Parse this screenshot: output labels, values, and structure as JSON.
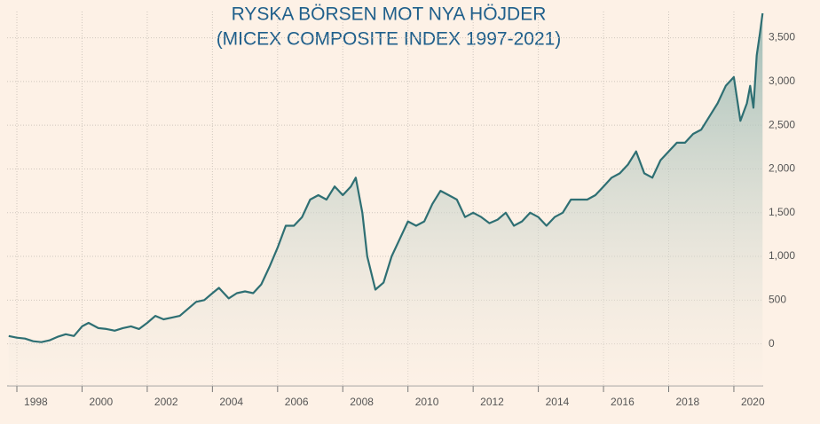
{
  "chart_data": {
    "type": "line",
    "title": "RYSKA BÖRSEN MOT NYA HÖJDER",
    "subtitle": "(MICEX COMPOSITE INDEX 1997-2021)",
    "x": [
      1997.75,
      1998.0,
      1998.25,
      1998.5,
      1998.75,
      1999.0,
      1999.25,
      1999.5,
      1999.75,
      2000.0,
      2000.2,
      2000.5,
      2000.75,
      2001.0,
      2001.25,
      2001.5,
      2001.75,
      2002.0,
      2002.25,
      2002.5,
      2002.75,
      2003.0,
      2003.25,
      2003.5,
      2003.75,
      2004.0,
      2004.2,
      2004.5,
      2004.75,
      2005.0,
      2005.25,
      2005.5,
      2005.75,
      2006.0,
      2006.25,
      2006.5,
      2006.75,
      2007.0,
      2007.25,
      2007.5,
      2007.75,
      2008.0,
      2008.25,
      2008.4,
      2008.6,
      2008.75,
      2009.0,
      2009.25,
      2009.5,
      2009.75,
      2010.0,
      2010.25,
      2010.5,
      2010.75,
      2011.0,
      2011.25,
      2011.5,
      2011.75,
      2012.0,
      2012.25,
      2012.5,
      2012.75,
      2013.0,
      2013.25,
      2013.5,
      2013.75,
      2014.0,
      2014.25,
      2014.5,
      2014.75,
      2015.0,
      2015.25,
      2015.5,
      2015.75,
      2016.0,
      2016.25,
      2016.5,
      2016.75,
      2017.0,
      2017.25,
      2017.5,
      2017.75,
      2018.0,
      2018.25,
      2018.5,
      2018.75,
      2019.0,
      2019.25,
      2019.5,
      2019.75,
      2020.0,
      2020.2,
      2020.4,
      2020.5,
      2020.6,
      2020.7,
      2020.8,
      2020.88
    ],
    "values": [
      90,
      70,
      60,
      30,
      20,
      40,
      80,
      110,
      90,
      200,
      240,
      180,
      170,
      150,
      180,
      200,
      170,
      240,
      320,
      280,
      300,
      320,
      400,
      480,
      500,
      580,
      640,
      520,
      580,
      600,
      580,
      680,
      880,
      1100,
      1350,
      1350,
      1450,
      1650,
      1700,
      1650,
      1800,
      1700,
      1800,
      1900,
      1500,
      1000,
      620,
      700,
      1000,
      1200,
      1400,
      1350,
      1400,
      1600,
      1750,
      1700,
      1650,
      1450,
      1500,
      1450,
      1380,
      1420,
      1500,
      1350,
      1400,
      1500,
      1450,
      1350,
      1450,
      1500,
      1650,
      1650,
      1650,
      1700,
      1800,
      1900,
      1950,
      2050,
      2200,
      1950,
      1900,
      2100,
      2200,
      2300,
      2300,
      2400,
      2450,
      2600,
      2750,
      2950,
      3050,
      2550,
      2750,
      2950,
      2700,
      3300,
      3550,
      3780
    ],
    "color": "#2e6f73",
    "xlim": [
      1997.7,
      2020.9
    ],
    "xticks": [
      1998,
      2000,
      2002,
      2004,
      2006,
      2008,
      2010,
      2012,
      2014,
      2016,
      2018,
      2020
    ],
    "ylim": [
      -450,
      3800
    ],
    "yticks": [
      0,
      500,
      {
        "value": 1000,
        "label": "1,000"
      },
      {
        "value": 1500,
        "label": "1,500"
      },
      {
        "value": 2000,
        "label": "2,000"
      },
      {
        "value": 2500,
        "label": "2,500"
      },
      {
        "value": 3000,
        "label": "3,000"
      },
      {
        "value": 3500,
        "label": "3,500"
      }
    ],
    "grid": true
  }
}
